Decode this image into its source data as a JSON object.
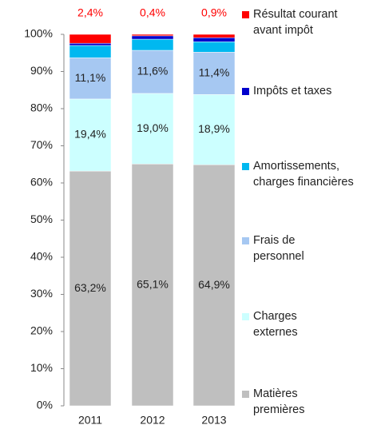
{
  "chart_data": {
    "type": "stacked_bar",
    "categories": [
      "2011",
      "2012",
      "2013"
    ],
    "series": [
      {
        "name": "Matières premières",
        "color": "#bfbfbf",
        "values": [
          63.2,
          65.1,
          64.9
        ],
        "value_labels": [
          "63,2%",
          "65,1%",
          "64,9%"
        ]
      },
      {
        "name": "Charges externes",
        "color": "#ccffff",
        "values": [
          19.4,
          19.0,
          18.9
        ],
        "value_labels": [
          "19,4%",
          "19,0%",
          "18,9%"
        ]
      },
      {
        "name": "Frais de personnel",
        "color": "#a6c8f2",
        "values": [
          11.1,
          11.6,
          11.4
        ],
        "value_labels": [
          "11,1%",
          "11,6%",
          "11,4%"
        ]
      },
      {
        "name": "Amortissements, charges financières",
        "color": "#00b8f0",
        "values": [
          3.3,
          3.0,
          2.8
        ]
      },
      {
        "name": "Impôts et taxes",
        "color": "#0000cc",
        "values": [
          0.6,
          0.9,
          1.1
        ]
      },
      {
        "name": "Résultat courant avant impôt",
        "color": "#ff0000",
        "values": [
          2.4,
          0.4,
          0.9
        ],
        "value_labels": [
          "2,4%",
          "0,4%",
          "0,9%"
        ]
      }
    ],
    "ylim": [
      0,
      100
    ],
    "yticks": [
      {
        "value": 0,
        "label": "0%"
      },
      {
        "value": 10,
        "label": "10%"
      },
      {
        "value": 20,
        "label": "20%"
      },
      {
        "value": 30,
        "label": "30%"
      },
      {
        "value": 40,
        "label": "40%"
      },
      {
        "value": 50,
        "label": "50%"
      },
      {
        "value": 60,
        "label": "60%"
      },
      {
        "value": 70,
        "label": "70%"
      },
      {
        "value": 80,
        "label": "80%"
      },
      {
        "value": 90,
        "label": "90%"
      },
      {
        "value": 100,
        "label": "100%"
      }
    ]
  }
}
